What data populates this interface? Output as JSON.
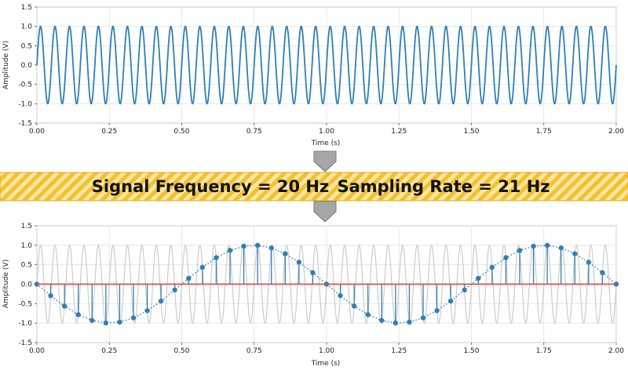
{
  "chart_data": [
    {
      "type": "line",
      "name": "continuous-signal",
      "title": "",
      "xlabel": "Time (s)",
      "ylabel": "Amplitude (V)",
      "xlim": [
        0,
        2
      ],
      "ylim": [
        -1.5,
        1.5
      ],
      "x_ticks": [
        "0.00",
        "0.25",
        "0.50",
        "0.75",
        "1.00",
        "1.25",
        "1.50",
        "1.75",
        "2.00"
      ],
      "y_ticks": [
        "1.5",
        "1.0",
        "0.5",
        "0.0",
        "-0.5",
        "-1.0",
        "-1.5"
      ],
      "grid": true,
      "series": [
        {
          "name": "Signal",
          "function": "sine",
          "frequency_hz": 20,
          "amplitude": 1.0,
          "x_range": [
            0,
            2
          ],
          "color": "#2f7fb8"
        }
      ]
    },
    {
      "type": "line",
      "name": "sampled-signal",
      "title": "",
      "xlabel": "Time (s)",
      "ylabel": "Amplitude (V)",
      "xlim": [
        0,
        2
      ],
      "ylim": [
        -1.5,
        1.5
      ],
      "x_ticks": [
        "0.00",
        "0.25",
        "0.50",
        "0.75",
        "1.00",
        "1.25",
        "1.50",
        "1.75",
        "2.00"
      ],
      "y_ticks": [
        "1.5",
        "1.0",
        "0.5",
        "0.0",
        "-0.5",
        "-1.0",
        "-1.5"
      ],
      "grid": true,
      "series": [
        {
          "name": "Original signal (faint)",
          "function": "sine",
          "frequency_hz": 20,
          "amplitude": 1.0,
          "x_range": [
            0,
            2
          ],
          "color": "#cccccc"
        },
        {
          "name": "Samples",
          "function": "sampled-sine",
          "frequency_hz": 20,
          "sampling_rate_hz": 21,
          "x_range": [
            0,
            2
          ],
          "style": "stem + dotted line",
          "color": "#2f7fb8"
        },
        {
          "name": "Zero line",
          "function": "constant",
          "value": 0,
          "x_range": [
            0,
            2
          ],
          "color": "#d9534f"
        }
      ]
    }
  ],
  "banner": {
    "signal_frequency": "Signal Frequency = 20 Hz",
    "sampling_rate": "Sampling Rate = 21 Hz",
    "stripe_colors": [
      "#f6c53c",
      "#fbe7a2"
    ]
  }
}
